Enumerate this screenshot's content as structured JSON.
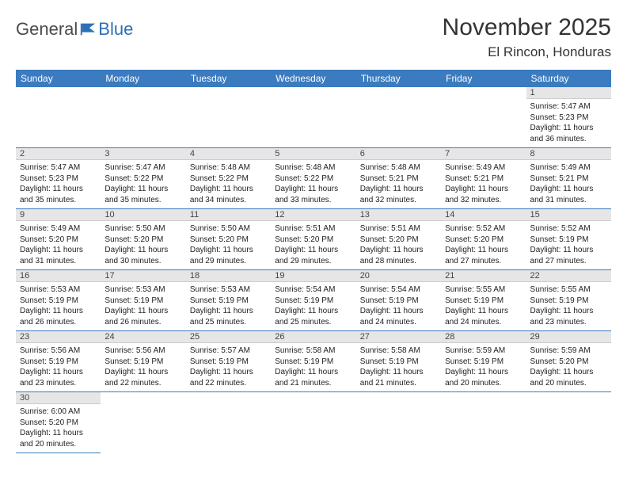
{
  "brand": {
    "part1": "General",
    "part2": "Blue",
    "accent": "#2d6fb5"
  },
  "title": "November 2025",
  "location": "El Rincon, Honduras",
  "colors": {
    "headerBg": "#3b7bbf",
    "headerFg": "#ffffff",
    "dayBar": "#e6e6e6",
    "rowBorder": "#3b7bbf",
    "text": "#222222"
  },
  "dayHeaders": [
    "Sunday",
    "Monday",
    "Tuesday",
    "Wednesday",
    "Thursday",
    "Friday",
    "Saturday"
  ],
  "weeks": [
    [
      null,
      null,
      null,
      null,
      null,
      null,
      {
        "n": "1",
        "sr": "5:47 AM",
        "ss": "5:23 PM",
        "dh": "11",
        "dm": "36"
      }
    ],
    [
      {
        "n": "2",
        "sr": "5:47 AM",
        "ss": "5:23 PM",
        "dh": "11",
        "dm": "35"
      },
      {
        "n": "3",
        "sr": "5:47 AM",
        "ss": "5:22 PM",
        "dh": "11",
        "dm": "35"
      },
      {
        "n": "4",
        "sr": "5:48 AM",
        "ss": "5:22 PM",
        "dh": "11",
        "dm": "34"
      },
      {
        "n": "5",
        "sr": "5:48 AM",
        "ss": "5:22 PM",
        "dh": "11",
        "dm": "33"
      },
      {
        "n": "6",
        "sr": "5:48 AM",
        "ss": "5:21 PM",
        "dh": "11",
        "dm": "32"
      },
      {
        "n": "7",
        "sr": "5:49 AM",
        "ss": "5:21 PM",
        "dh": "11",
        "dm": "32"
      },
      {
        "n": "8",
        "sr": "5:49 AM",
        "ss": "5:21 PM",
        "dh": "11",
        "dm": "31"
      }
    ],
    [
      {
        "n": "9",
        "sr": "5:49 AM",
        "ss": "5:20 PM",
        "dh": "11",
        "dm": "31"
      },
      {
        "n": "10",
        "sr": "5:50 AM",
        "ss": "5:20 PM",
        "dh": "11",
        "dm": "30"
      },
      {
        "n": "11",
        "sr": "5:50 AM",
        "ss": "5:20 PM",
        "dh": "11",
        "dm": "29"
      },
      {
        "n": "12",
        "sr": "5:51 AM",
        "ss": "5:20 PM",
        "dh": "11",
        "dm": "29"
      },
      {
        "n": "13",
        "sr": "5:51 AM",
        "ss": "5:20 PM",
        "dh": "11",
        "dm": "28"
      },
      {
        "n": "14",
        "sr": "5:52 AM",
        "ss": "5:20 PM",
        "dh": "11",
        "dm": "27"
      },
      {
        "n": "15",
        "sr": "5:52 AM",
        "ss": "5:19 PM",
        "dh": "11",
        "dm": "27"
      }
    ],
    [
      {
        "n": "16",
        "sr": "5:53 AM",
        "ss": "5:19 PM",
        "dh": "11",
        "dm": "26"
      },
      {
        "n": "17",
        "sr": "5:53 AM",
        "ss": "5:19 PM",
        "dh": "11",
        "dm": "26"
      },
      {
        "n": "18",
        "sr": "5:53 AM",
        "ss": "5:19 PM",
        "dh": "11",
        "dm": "25"
      },
      {
        "n": "19",
        "sr": "5:54 AM",
        "ss": "5:19 PM",
        "dh": "11",
        "dm": "25"
      },
      {
        "n": "20",
        "sr": "5:54 AM",
        "ss": "5:19 PM",
        "dh": "11",
        "dm": "24"
      },
      {
        "n": "21",
        "sr": "5:55 AM",
        "ss": "5:19 PM",
        "dh": "11",
        "dm": "24"
      },
      {
        "n": "22",
        "sr": "5:55 AM",
        "ss": "5:19 PM",
        "dh": "11",
        "dm": "23"
      }
    ],
    [
      {
        "n": "23",
        "sr": "5:56 AM",
        "ss": "5:19 PM",
        "dh": "11",
        "dm": "23"
      },
      {
        "n": "24",
        "sr": "5:56 AM",
        "ss": "5:19 PM",
        "dh": "11",
        "dm": "22"
      },
      {
        "n": "25",
        "sr": "5:57 AM",
        "ss": "5:19 PM",
        "dh": "11",
        "dm": "22"
      },
      {
        "n": "26",
        "sr": "5:58 AM",
        "ss": "5:19 PM",
        "dh": "11",
        "dm": "21"
      },
      {
        "n": "27",
        "sr": "5:58 AM",
        "ss": "5:19 PM",
        "dh": "11",
        "dm": "21"
      },
      {
        "n": "28",
        "sr": "5:59 AM",
        "ss": "5:19 PM",
        "dh": "11",
        "dm": "20"
      },
      {
        "n": "29",
        "sr": "5:59 AM",
        "ss": "5:20 PM",
        "dh": "11",
        "dm": "20"
      }
    ],
    [
      {
        "n": "30",
        "sr": "6:00 AM",
        "ss": "5:20 PM",
        "dh": "11",
        "dm": "20"
      },
      null,
      null,
      null,
      null,
      null,
      null
    ]
  ],
  "labels": {
    "sunrise": "Sunrise:",
    "sunset": "Sunset:",
    "daylight": "Daylight:",
    "hours": "hours",
    "and": "and",
    "minutes": "minutes."
  }
}
